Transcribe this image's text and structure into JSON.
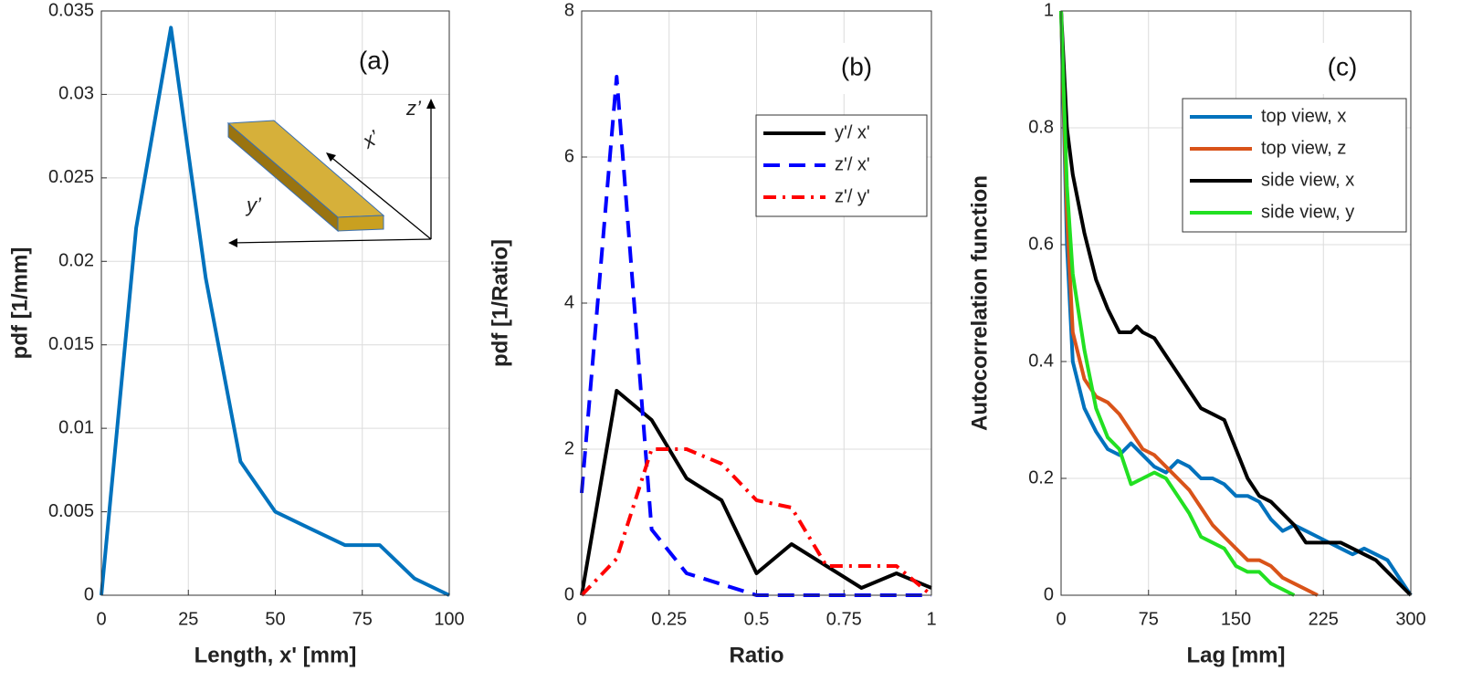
{
  "chart_data": [
    {
      "type": "line",
      "annotation": "(a)",
      "xlabel": "Length,  x' [mm]",
      "ylabel": "pdf [1/mm]",
      "x": [
        0,
        10,
        20,
        30,
        40,
        50,
        60,
        70,
        80,
        90,
        100
      ],
      "values": [
        0,
        0.022,
        0.034,
        0.019,
        0.008,
        0.005,
        0.004,
        0.003,
        0.003,
        0.001,
        0
      ],
      "color": "#0072bd",
      "xlim": [
        0,
        100
      ],
      "xticks": [
        0,
        25,
        50,
        75,
        100
      ],
      "ylim": [
        0,
        0.035
      ],
      "yticks": [
        0,
        0.005,
        0.01,
        0.015,
        0.02,
        0.025,
        0.03,
        0.035
      ],
      "grid": true,
      "inset_labels": [
        "x’",
        "y’",
        "z’"
      ]
    },
    {
      "type": "line",
      "annotation": "(b)",
      "xlabel": "Ratio",
      "ylabel": "pdf [1/Ratio]",
      "xlim": [
        0,
        1
      ],
      "xticks": [
        0,
        0.25,
        0.5,
        0.75,
        1
      ],
      "ylim": [
        0,
        8
      ],
      "yticks": [
        0,
        2,
        4,
        6,
        8
      ],
      "grid": true,
      "legend": "upper right",
      "series": [
        {
          "name": "y'/ x'",
          "color": "#000000",
          "linestyle": "solid",
          "x": [
            0,
            0.1,
            0.2,
            0.3,
            0.4,
            0.5,
            0.6,
            0.7,
            0.8,
            0.9,
            1
          ],
          "values": [
            0,
            2.8,
            2.4,
            1.6,
            1.3,
            0.3,
            0.7,
            0.4,
            0.1,
            0.3,
            0.1
          ]
        },
        {
          "name": "z'/ x'",
          "color": "#0000ff",
          "linestyle": "dashed",
          "x": [
            0,
            0.1,
            0.2,
            0.3,
            0.4,
            0.5,
            0.6,
            0.7,
            0.8,
            0.9,
            1
          ],
          "values": [
            1.4,
            7.1,
            0.9,
            0.3,
            0.15,
            0,
            0,
            0,
            0,
            0,
            0
          ]
        },
        {
          "name": "z'/ y'",
          "color": "#ff0000",
          "linestyle": "dashdot",
          "x": [
            0,
            0.1,
            0.2,
            0.3,
            0.4,
            0.5,
            0.6,
            0.7,
            0.8,
            0.9,
            1
          ],
          "values": [
            0,
            0.5,
            2,
            2,
            1.8,
            1.3,
            1.2,
            0.4,
            0.4,
            0.4,
            0
          ]
        }
      ]
    },
    {
      "type": "line",
      "annotation": "(c)",
      "xlabel": "Lag [mm]",
      "ylabel": "Autocorrelation function",
      "xlim": [
        0,
        300
      ],
      "xticks": [
        0,
        75,
        150,
        225,
        300
      ],
      "ylim": [
        0,
        1
      ],
      "yticks": [
        0,
        0.2,
        0.4,
        0.6,
        0.8,
        1
      ],
      "grid": true,
      "legend": "upper right",
      "series": [
        {
          "name": "top view,  x",
          "color": "#0072bd",
          "linestyle": "solid",
          "x": [
            0,
            5,
            10,
            20,
            30,
            40,
            50,
            60,
            70,
            80,
            90,
            100,
            110,
            120,
            130,
            140,
            150,
            160,
            170,
            180,
            190,
            200,
            210,
            220,
            230,
            240,
            250,
            260,
            270,
            280,
            290,
            300
          ],
          "values": [
            1,
            0.6,
            0.4,
            0.32,
            0.28,
            0.25,
            0.24,
            0.26,
            0.24,
            0.22,
            0.21,
            0.23,
            0.22,
            0.2,
            0.2,
            0.19,
            0.17,
            0.17,
            0.16,
            0.13,
            0.11,
            0.12,
            0.11,
            0.1,
            0.09,
            0.08,
            0.07,
            0.08,
            0.07,
            0.06,
            0.03,
            0
          ]
        },
        {
          "name": "top view,  z",
          "color": "#d95319",
          "linestyle": "solid",
          "x": [
            0,
            5,
            10,
            20,
            30,
            40,
            50,
            60,
            70,
            80,
            90,
            100,
            110,
            120,
            130,
            140,
            150,
            160,
            170,
            180,
            190,
            200,
            210,
            220
          ],
          "values": [
            1,
            0.65,
            0.45,
            0.37,
            0.34,
            0.33,
            0.31,
            0.28,
            0.25,
            0.24,
            0.22,
            0.2,
            0.18,
            0.15,
            0.12,
            0.1,
            0.08,
            0.06,
            0.06,
            0.05,
            0.03,
            0.02,
            0.01,
            0
          ]
        },
        {
          "name": "side view,  x",
          "color": "#000000",
          "linestyle": "solid",
          "x": [
            0,
            5,
            10,
            20,
            30,
            40,
            50,
            60,
            65,
            70,
            80,
            90,
            100,
            110,
            120,
            130,
            140,
            150,
            160,
            170,
            180,
            190,
            200,
            210,
            220,
            230,
            240,
            250,
            260,
            270,
            280,
            290,
            300
          ],
          "values": [
            1,
            0.8,
            0.72,
            0.62,
            0.54,
            0.49,
            0.45,
            0.45,
            0.46,
            0.45,
            0.44,
            0.41,
            0.38,
            0.35,
            0.32,
            0.31,
            0.3,
            0.25,
            0.2,
            0.17,
            0.16,
            0.14,
            0.12,
            0.09,
            0.09,
            0.09,
            0.09,
            0.08,
            0.07,
            0.06,
            0.04,
            0.02,
            0
          ]
        },
        {
          "name": "side view,  y",
          "color": "#22e022",
          "linestyle": "solid",
          "x": [
            0,
            5,
            10,
            20,
            30,
            40,
            50,
            60,
            70,
            80,
            90,
            100,
            110,
            120,
            130,
            140,
            150,
            160,
            170,
            180,
            190,
            200
          ],
          "values": [
            1,
            0.7,
            0.55,
            0.42,
            0.32,
            0.27,
            0.25,
            0.19,
            0.2,
            0.21,
            0.2,
            0.17,
            0.14,
            0.1,
            0.09,
            0.08,
            0.05,
            0.04,
            0.04,
            0.02,
            0.01,
            0
          ]
        }
      ]
    }
  ]
}
